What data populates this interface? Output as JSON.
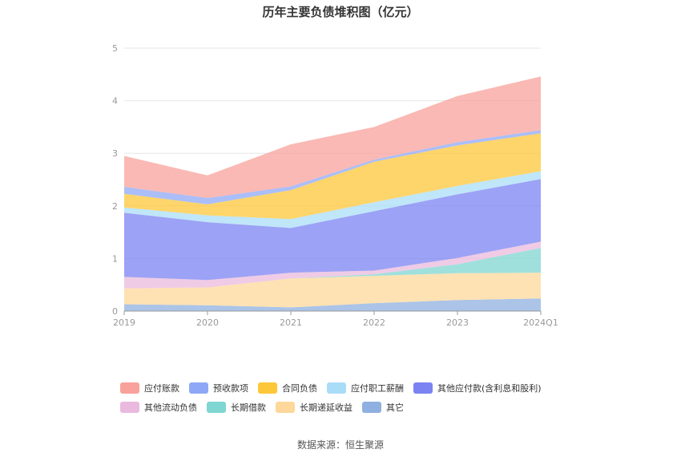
{
  "chart_data": {
    "type": "area",
    "stacked": true,
    "title": "历年主要负债堆积图（亿元）",
    "categories": [
      "2019",
      "2020",
      "2021",
      "2022",
      "2023",
      "2024Q1"
    ],
    "ylim": [
      0,
      5
    ],
    "yticks": [
      "0",
      "1",
      "2",
      "3",
      "4",
      "5"
    ],
    "grid": true,
    "legend_position": "bottom",
    "series": [
      {
        "name": "其它",
        "color": "#8fb0e0",
        "values": [
          0.13,
          0.11,
          0.07,
          0.15,
          0.21,
          0.24
        ]
      },
      {
        "name": "长期递延收益",
        "color": "#fdd89a",
        "values": [
          0.3,
          0.34,
          0.55,
          0.52,
          0.51,
          0.49
        ]
      },
      {
        "name": "长期借款",
        "color": "#7fd6d2",
        "values": [
          0.0,
          0.0,
          0.0,
          0.03,
          0.17,
          0.47
        ]
      },
      {
        "name": "其他流动负债",
        "color": "#e9b9de",
        "values": [
          0.22,
          0.14,
          0.11,
          0.07,
          0.12,
          0.12
        ]
      },
      {
        "name": "其他应付款(含利息和股利)",
        "color": "#7b83f2",
        "values": [
          1.22,
          1.1,
          0.85,
          1.13,
          1.21,
          1.19
        ]
      },
      {
        "name": "应付职工薪酬",
        "color": "#a9ddf7",
        "values": [
          0.1,
          0.13,
          0.17,
          0.17,
          0.16,
          0.15
        ]
      },
      {
        "name": "合同负债",
        "color": "#fdc73a",
        "values": [
          0.26,
          0.21,
          0.55,
          0.77,
          0.77,
          0.72
        ]
      },
      {
        "name": "预收款项",
        "color": "#8fa8f5",
        "values": [
          0.13,
          0.12,
          0.07,
          0.04,
          0.06,
          0.06
        ]
      },
      {
        "name": "应付账款",
        "color": "#f8a29b",
        "values": [
          0.59,
          0.43,
          0.8,
          0.62,
          0.88,
          1.02
        ]
      }
    ]
  },
  "legend_rows": [
    [
      "应付账款",
      "预收款项",
      "合同负债",
      "应付职工薪酬",
      "其他应付款(含利息和股利)"
    ],
    [
      "其他流动负债",
      "长期借款",
      "长期递延收益",
      "其它"
    ]
  ],
  "source": "数据来源：恒生聚源"
}
